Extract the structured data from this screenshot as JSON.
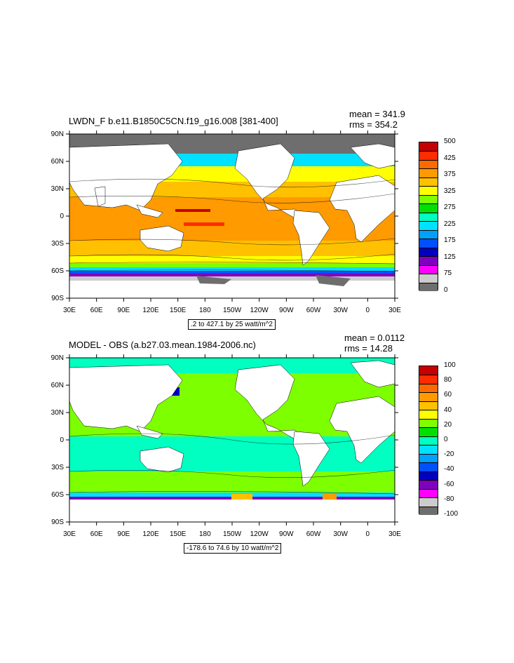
{
  "chart_data": [
    {
      "type": "heatmap",
      "title": "LWDN_F b.e11.B1850C5CN.f19_g16.008 [381-400]",
      "stats": {
        "mean": "mean = 341.9",
        "rms": "rms = 354.2"
      },
      "range_note": ".2 to 427.1 by 25 watt/m^2",
      "x_ticks": [
        "30E",
        "60E",
        "90E",
        "120E",
        "150E",
        "180",
        "150W",
        "120W",
        "90W",
        "60W",
        "30W",
        "0",
        "30E"
      ],
      "y_ticks": [
        "90N",
        "60N",
        "30N",
        "0",
        "30S",
        "60S",
        "90S"
      ],
      "colorbar": {
        "labels": [
          "500",
          "425",
          "375",
          "325",
          "275",
          "225",
          "175",
          "125",
          "75",
          "0"
        ],
        "colors": [
          "#c40000",
          "#ff2c00",
          "#ff6a00",
          "#ff9a00",
          "#ffc000",
          "#ffff00",
          "#7dff00",
          "#00e000",
          "#00ffc0",
          "#00e0ff",
          "#00a0ff",
          "#0050ff",
          "#0000c0",
          "#8000c0",
          "#ff00ff",
          "#cccccc",
          "#6e6e6e"
        ]
      }
    },
    {
      "type": "heatmap",
      "title": "MODEL - OBS (a.b27.03.mean.1984-2006.nc)",
      "stats": {
        "mean": "mean = 0.0112",
        "rms": "rms = 14.28"
      },
      "range_note": "-178.6 to 74.6 by 10 watt/m^2",
      "x_ticks": [
        "30E",
        "60E",
        "90E",
        "120E",
        "150E",
        "180",
        "150W",
        "120W",
        "90W",
        "60W",
        "30W",
        "0",
        "30E"
      ],
      "y_ticks": [
        "90N",
        "60N",
        "30N",
        "0",
        "30S",
        "60S",
        "90S"
      ],
      "colorbar": {
        "labels": [
          "100",
          "80",
          "60",
          "40",
          "20",
          "0",
          "-20",
          "-40",
          "-60",
          "-80",
          "-100"
        ],
        "colors": [
          "#c40000",
          "#ff2c00",
          "#ff6a00",
          "#ff9a00",
          "#ffc000",
          "#ffff00",
          "#7dff00",
          "#00e000",
          "#00ffc0",
          "#00e0ff",
          "#00a0ff",
          "#0050ff",
          "#0000c0",
          "#8000c0",
          "#ff00ff",
          "#cccccc",
          "#6e6e6e"
        ]
      }
    }
  ]
}
